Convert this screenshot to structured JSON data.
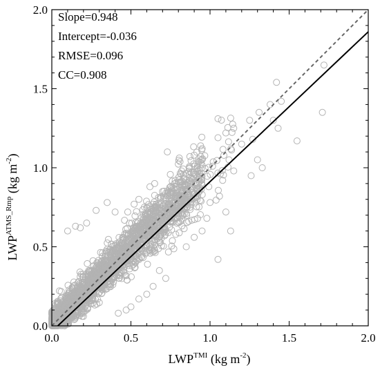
{
  "chart_data": {
    "type": "scatter",
    "xlabel": {
      "base": "LWP",
      "sup": "TMI",
      "unit": " (kg m",
      "unit_sup": "-2",
      "close": ")"
    },
    "ylabel": {
      "base": "LWP",
      "sup": "ATMS_Rmp",
      "unit": " (kg m",
      "unit_sup": "-2",
      "close": ")"
    },
    "xlim": [
      0.0,
      2.0
    ],
    "ylim": [
      0.0,
      2.0
    ],
    "xticks": [
      "0.0",
      "0.5",
      "1.0",
      "1.5",
      "2.0"
    ],
    "yticks": [
      "0.0",
      "0.5",
      "1.0",
      "1.5",
      "2.0"
    ],
    "stats": [
      "Slope=0.948",
      "Intercept=-0.036",
      "RMSE=0.096",
      "CC=0.908"
    ],
    "fit_line": {
      "slope": 0.948,
      "intercept": -0.036,
      "style": "solid",
      "color": "#000000"
    },
    "one_to_one_line": {
      "slope": 1.0,
      "intercept": 0.0,
      "style": "dashed",
      "color": "#666666"
    },
    "marker": {
      "shape": "open-circle",
      "color": "#b3b3b3"
    },
    "points": [
      [
        1.72,
        1.65
      ],
      [
        1.71,
        1.35
      ],
      [
        1.42,
        1.54
      ],
      [
        1.55,
        1.17
      ],
      [
        1.45,
        1.42
      ],
      [
        1.4,
        1.3
      ],
      [
        1.38,
        1.4
      ],
      [
        1.43,
        1.25
      ],
      [
        1.31,
        1.35
      ],
      [
        1.25,
        1.3
      ],
      [
        1.27,
        1.18
      ],
      [
        1.2,
        1.15
      ],
      [
        1.3,
        1.05
      ],
      [
        1.33,
        1.0
      ],
      [
        1.26,
        0.95
      ],
      [
        1.15,
        1.25
      ],
      [
        1.1,
        1.22
      ],
      [
        1.05,
        1.19
      ],
      [
        1.12,
        1.05
      ],
      [
        1.15,
        0.98
      ],
      [
        1.08,
        0.92
      ],
      [
        1.06,
        0.82
      ],
      [
        1.1,
        0.72
      ],
      [
        1.0,
        0.78
      ],
      [
        1.13,
        0.6
      ],
      [
        0.98,
        0.68
      ],
      [
        0.95,
        0.6
      ],
      [
        1.05,
        0.42
      ],
      [
        0.9,
        0.56
      ],
      [
        0.85,
        0.5
      ],
      [
        0.88,
        0.88
      ],
      [
        0.93,
        0.95
      ],
      [
        0.82,
        0.98
      ],
      [
        0.78,
        0.92
      ],
      [
        0.75,
        0.88
      ],
      [
        0.73,
        1.1
      ],
      [
        0.65,
        0.9
      ],
      [
        0.7,
        0.85
      ],
      [
        0.62,
        0.88
      ],
      [
        0.6,
        0.75
      ],
      [
        0.55,
        0.8
      ],
      [
        0.52,
        0.77
      ],
      [
        0.48,
        0.72
      ],
      [
        0.4,
        0.72
      ],
      [
        0.35,
        0.78
      ],
      [
        0.28,
        0.73
      ],
      [
        0.22,
        0.65
      ],
      [
        0.18,
        0.62
      ],
      [
        0.15,
        0.63
      ],
      [
        0.1,
        0.6
      ],
      [
        0.68,
        0.35
      ],
      [
        0.72,
        0.3
      ],
      [
        0.64,
        0.25
      ],
      [
        0.6,
        0.2
      ],
      [
        0.55,
        0.17
      ],
      [
        0.5,
        0.12
      ],
      [
        0.47,
        0.1
      ],
      [
        0.42,
        0.08
      ]
    ]
  }
}
